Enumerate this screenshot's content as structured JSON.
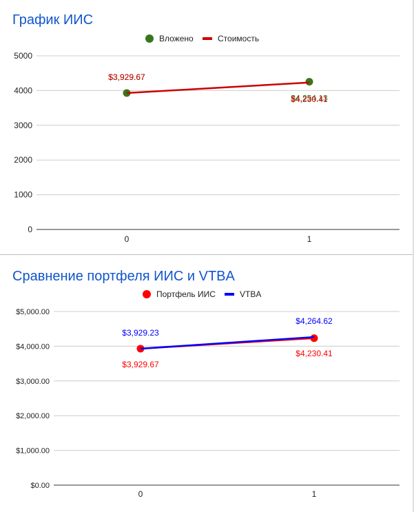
{
  "charts": [
    {
      "title": "График ИИС",
      "colors": {
        "title": "#1155cc",
        "s1": "#38761d",
        "s2": "#cc0000"
      },
      "y_ticks": [
        "0",
        "1000",
        "2000",
        "3000",
        "4000",
        "5000"
      ],
      "x_ticks": [
        "0",
        "1"
      ],
      "legend": [
        {
          "name": "Вложено",
          "marker": "circle",
          "color": "#38761d"
        },
        {
          "name": "Стоимость",
          "marker": "line",
          "color": "#cc0000"
        }
      ]
    },
    {
      "title": "Сравнение портфеля ИИС и VTBA",
      "colors": {
        "title": "#1155cc",
        "s1": "#ff0000",
        "s2": "#0000ff"
      },
      "y_ticks": [
        "$0.00",
        "$1,000.00",
        "$2,000.00",
        "$3,000.00",
        "$4,000.00",
        "$5,000.00"
      ],
      "x_ticks": [
        "0",
        "1"
      ],
      "legend": [
        {
          "name": "Портфель ИИС",
          "marker": "circle",
          "color": "#ff0000"
        },
        {
          "name": "VTBA",
          "marker": "line",
          "color": "#0000ff"
        }
      ]
    }
  ],
  "chart_data": [
    {
      "type": "line",
      "title": "График ИИС",
      "x": [
        0,
        1
      ],
      "ylim": [
        0,
        5000
      ],
      "grid": true,
      "legend_position": "top",
      "series": [
        {
          "name": "Вложено",
          "values": [
            3929.67,
            4254.13
          ],
          "labels": [
            "$3,929.67",
            "$4,254.13"
          ],
          "style": "points",
          "color": "#38761d"
        },
        {
          "name": "Стоимость",
          "values": [
            3929.67,
            4230.41
          ],
          "labels": [
            "$3,929.67",
            "$4,230.41"
          ],
          "style": "line",
          "color": "#cc0000"
        }
      ]
    },
    {
      "type": "line",
      "title": "Сравнение портфеля ИИС и VTBA",
      "x": [
        0,
        1
      ],
      "ylim": [
        0,
        5000
      ],
      "grid": true,
      "legend_position": "top",
      "series": [
        {
          "name": "Портфель ИИС",
          "values": [
            3929.67,
            4230.41
          ],
          "labels": [
            "$3,929.67",
            "$4,230.41"
          ],
          "style": "points+line",
          "color": "#ff0000"
        },
        {
          "name": "VTBA",
          "values": [
            3929.23,
            4264.62
          ],
          "labels": [
            "$3,929.23",
            "$4,264.62"
          ],
          "style": "line",
          "color": "#0000ff"
        }
      ]
    }
  ]
}
